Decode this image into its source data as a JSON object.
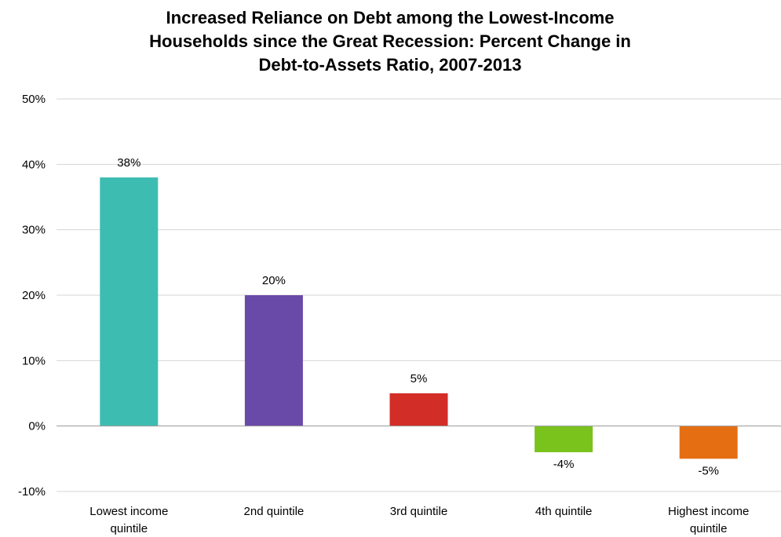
{
  "chart_data": {
    "type": "bar",
    "title_lines": [
      "Increased Reliance on Debt among the Lowest-Income",
      "Households since the Great Recession: Percent Change in",
      "Debt-to-Assets Ratio, 2007-2013"
    ],
    "categories": [
      [
        "Lowest income",
        "quintile"
      ],
      [
        "2nd quintile"
      ],
      [
        "3rd quintile"
      ],
      [
        "4th quintile"
      ],
      [
        "Highest income",
        "quintile"
      ]
    ],
    "values": [
      38,
      20,
      5,
      -4,
      -5
    ],
    "data_labels": [
      "38%",
      "20%",
      "5%",
      "-4%",
      "-5%"
    ],
    "colors": [
      "#3dbdb1",
      "#6a4aa8",
      "#d32d27",
      "#7ac21c",
      "#e56e12"
    ],
    "ylim": [
      -10,
      50
    ],
    "yticks": [
      50,
      40,
      30,
      20,
      10,
      0,
      -10
    ],
    "ytick_labels": [
      "50%",
      "40%",
      "30%",
      "20%",
      "10%",
      "0%",
      "-10%"
    ],
    "grid": true,
    "legend": "none",
    "xlabel": "",
    "ylabel": ""
  }
}
